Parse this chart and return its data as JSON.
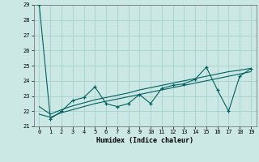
{
  "xlabel": "Humidex (Indice chaleur)",
  "bg_color": "#cce8e4",
  "grid_color": "#aad4d0",
  "line_color": "#006060",
  "xlim": [
    -0.5,
    19.5
  ],
  "ylim": [
    21,
    29
  ],
  "yticks": [
    21,
    22,
    23,
    24,
    25,
    26,
    27,
    28,
    29
  ],
  "xticks": [
    0,
    1,
    2,
    3,
    4,
    5,
    6,
    7,
    8,
    9,
    10,
    11,
    12,
    13,
    14,
    15,
    16,
    17,
    18,
    19
  ],
  "x": [
    0,
    1,
    2,
    3,
    4,
    5,
    6,
    7,
    8,
    9,
    10,
    11,
    12,
    13,
    14,
    15,
    16,
    17,
    18,
    19
  ],
  "y_main": [
    29.0,
    21.5,
    22.0,
    22.7,
    22.9,
    23.6,
    22.5,
    22.3,
    22.5,
    23.1,
    22.5,
    23.5,
    23.7,
    23.8,
    24.1,
    24.9,
    23.4,
    22.0,
    24.3,
    24.8
  ],
  "y_lower": [
    21.8,
    21.6,
    21.9,
    22.1,
    22.3,
    22.5,
    22.65,
    22.8,
    22.95,
    23.1,
    23.25,
    23.4,
    23.55,
    23.7,
    23.85,
    24.0,
    24.15,
    24.3,
    24.45,
    24.6
  ],
  "y_upper": [
    22.3,
    21.8,
    22.1,
    22.35,
    22.55,
    22.75,
    22.9,
    23.05,
    23.2,
    23.4,
    23.55,
    23.7,
    23.85,
    24.0,
    24.15,
    24.3,
    24.45,
    24.6,
    24.7,
    24.82
  ]
}
